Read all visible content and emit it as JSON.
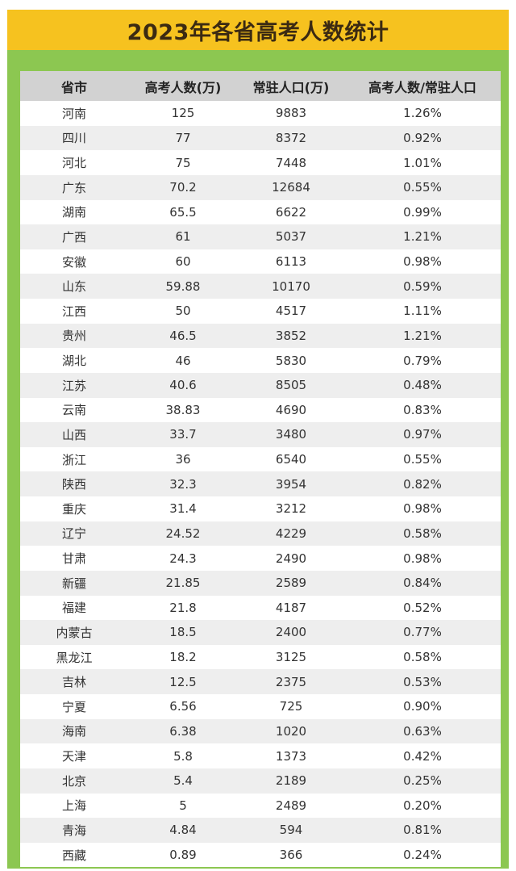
{
  "title": "2023年各省高考人数统计",
  "colors": {
    "frame_green": "#8cc751",
    "title_yellow": "#f6c21f",
    "header_gray": "#d2d2d2",
    "stripe_gray": "#eeeeee"
  },
  "table": {
    "headers": [
      "省市",
      "高考人数(万)",
      "常驻人口(万)",
      "高考人数/常驻人口"
    ],
    "rows": [
      [
        "河南",
        "125",
        "9883",
        "1.26%"
      ],
      [
        "四川",
        "77",
        "8372",
        "0.92%"
      ],
      [
        "河北",
        "75",
        "7448",
        "1.01%"
      ],
      [
        "广东",
        "70.2",
        "12684",
        "0.55%"
      ],
      [
        "湖南",
        "65.5",
        "6622",
        "0.99%"
      ],
      [
        "广西",
        "61",
        "5037",
        "1.21%"
      ],
      [
        "安徽",
        "60",
        "6113",
        "0.98%"
      ],
      [
        "山东",
        "59.88",
        "10170",
        "0.59%"
      ],
      [
        "江西",
        "50",
        "4517",
        "1.11%"
      ],
      [
        "贵州",
        "46.5",
        "3852",
        "1.21%"
      ],
      [
        "湖北",
        "46",
        "5830",
        "0.79%"
      ],
      [
        "江苏",
        "40.6",
        "8505",
        "0.48%"
      ],
      [
        "云南",
        "38.83",
        "4690",
        "0.83%"
      ],
      [
        "山西",
        "33.7",
        "3480",
        "0.97%"
      ],
      [
        "浙江",
        "36",
        "6540",
        "0.55%"
      ],
      [
        "陕西",
        "32.3",
        "3954",
        "0.82%"
      ],
      [
        "重庆",
        "31.4",
        "3212",
        "0.98%"
      ],
      [
        "辽宁",
        "24.52",
        "4229",
        "0.58%"
      ],
      [
        "甘肃",
        "24.3",
        "2490",
        "0.98%"
      ],
      [
        "新疆",
        "21.85",
        "2589",
        "0.84%"
      ],
      [
        "福建",
        "21.8",
        "4187",
        "0.52%"
      ],
      [
        "内蒙古",
        "18.5",
        "2400",
        "0.77%"
      ],
      [
        "黑龙江",
        "18.2",
        "3125",
        "0.58%"
      ],
      [
        "吉林",
        "12.5",
        "2375",
        "0.53%"
      ],
      [
        "宁夏",
        "6.56",
        "725",
        "0.90%"
      ],
      [
        "海南",
        "6.38",
        "1020",
        "0.63%"
      ],
      [
        "天津",
        "5.8",
        "1373",
        "0.42%"
      ],
      [
        "北京",
        "5.4",
        "2189",
        "0.25%"
      ],
      [
        "上海",
        "5",
        "2489",
        "0.20%"
      ],
      [
        "青海",
        "4.84",
        "594",
        "0.81%"
      ],
      [
        "西藏",
        "0.89",
        "366",
        "0.24%"
      ]
    ]
  }
}
